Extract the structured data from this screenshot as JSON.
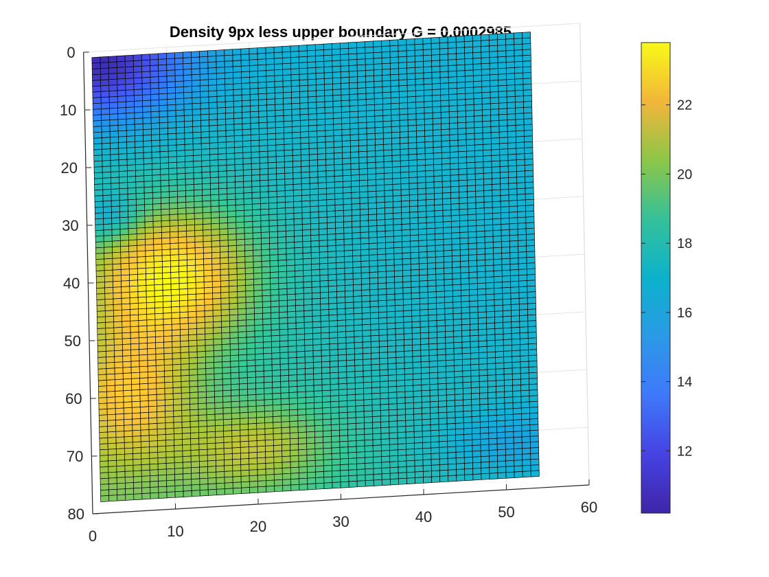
{
  "chart_data": {
    "type": "heatmap",
    "title": "Density 9px less upper boundary G = 0.0002985",
    "xlabel": "",
    "ylabel": "",
    "xlim": [
      0,
      60
    ],
    "ylim": [
      0,
      80
    ],
    "y_direction": "reversed (0 at top)",
    "x_ticks": [
      0,
      10,
      20,
      30,
      40,
      50,
      60
    ],
    "y_ticks": [
      0,
      10,
      20,
      30,
      40,
      50,
      60,
      70,
      80
    ],
    "grid": true,
    "view": "3-D surface seen from above, slightly rotated",
    "grid_size": {
      "cols": 53,
      "rows": 77
    },
    "surface_extent": {
      "x": [
        1,
        54
      ],
      "y": [
        1,
        78
      ]
    },
    "colormap": "parula",
    "colorbar": {
      "position": "right",
      "range": [
        10.2,
        23.8
      ],
      "ticks": [
        12,
        14,
        16,
        18,
        20,
        22
      ]
    },
    "value_field": {
      "background": "16 + 3*(y/78) - 2.5*(x/54)*(y/78)",
      "features": [
        {
          "description": "low region near top-left corner",
          "x": 2,
          "y": 2,
          "value": 10.5
        },
        {
          "description": "bright high peak",
          "x": 10,
          "y": 40,
          "value": 23.8
        },
        {
          "description": "secondary high zone",
          "x": 5,
          "y": 60,
          "value": 22
        },
        {
          "description": "mid-bottom bump",
          "x": 20,
          "y": 70,
          "value": 20.5
        },
        {
          "description": "blue pocket on left edge",
          "x": 3,
          "y": 29,
          "value": 15
        },
        {
          "description": "broad cyan trough",
          "x": 38,
          "y": 50,
          "value": 16.5
        },
        {
          "description": "low band right side near bottom",
          "x": 50,
          "y": 72,
          "value": 15.5
        }
      ]
    }
  }
}
